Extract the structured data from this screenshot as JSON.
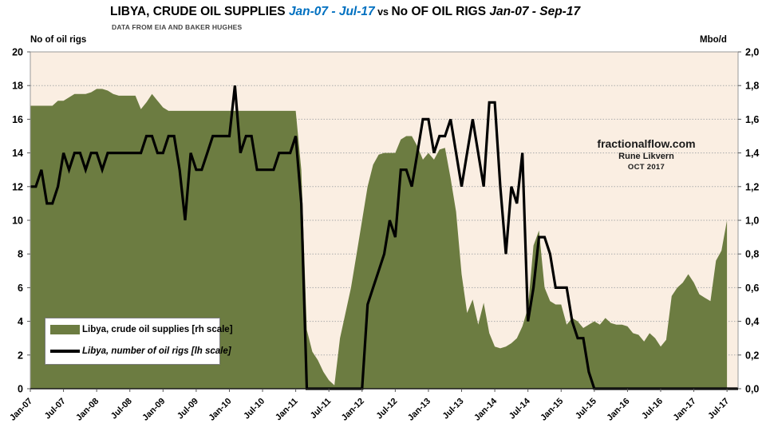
{
  "header": {
    "title_part1": "LIBYA, CRUDE OIL SUPPLIES ",
    "title_range1": "Jan-07 - Jul-17",
    "title_vs": " vs ",
    "title_part2": "No OF OIL RIGS ",
    "title_range2": "Jan-07 - Sep-17",
    "subtitle": "DATA FROM EIA AND BAKER HUGHES"
  },
  "axes": {
    "left_label": "No of  oil rigs",
    "right_label": "Mbo/d",
    "left_ticks": [
      "0",
      "2",
      "4",
      "6",
      "8",
      "10",
      "12",
      "14",
      "16",
      "18",
      "20"
    ],
    "right_ticks": [
      "0,0",
      "0,2",
      "0,4",
      "0,6",
      "0,8",
      "1,0",
      "1,2",
      "1,4",
      "1,6",
      "1,8",
      "2,0"
    ],
    "x_ticks": [
      "Jan-07",
      "Jul-07",
      "Jan-08",
      "Jul-08",
      "Jan-09",
      "Jul-09",
      "Jan-10",
      "Jul-10",
      "Jan-11",
      "Jul-11",
      "Jan-12",
      "Jul-12",
      "Jan-13",
      "Jul-13",
      "Jan-14",
      "Jul-14",
      "Jan-15",
      "Jul-15",
      "Jan-16",
      "Jul-16",
      "Jan-17",
      "Jul-17"
    ]
  },
  "legend": {
    "supplies_label": "Libya, crude oil supplies [rh scale]",
    "rigs_label": "Libya, number of oil rigs [lh scale]"
  },
  "annotation": {
    "site": "fractionalflow.com",
    "author": "Rune Likvern",
    "date": "OCT 2017"
  },
  "colors": {
    "area_green": "#6c7c41",
    "plot_bg": "#faeee2",
    "line_black": "#000000",
    "grid": "#ababab",
    "spine": "#9a9a9a",
    "title_blue": "#0070c0"
  },
  "chart_data": {
    "type": "area+line",
    "title": "LIBYA, CRUDE OIL SUPPLIES Jan-07 - Jul-17 vs No OF OIL RIGS Jan-07 - Sep-17",
    "subtitle": "DATA FROM EIA AND BAKER HUGHES",
    "x_tick_labels": [
      "Jan-07",
      "Jul-07",
      "Jan-08",
      "Jul-08",
      "Jan-09",
      "Jul-09",
      "Jan-10",
      "Jul-10",
      "Jan-11",
      "Jul-11",
      "Jan-12",
      "Jul-12",
      "Jan-13",
      "Jul-13",
      "Jan-14",
      "Jul-14",
      "Jan-15",
      "Jul-15",
      "Jan-16",
      "Jul-16",
      "Jan-17",
      "Jul-17"
    ],
    "months_total": 128,
    "left_axis": {
      "label": "No of  oil rigs",
      "min": 0,
      "max": 20,
      "step": 2
    },
    "right_axis": {
      "label": "Mbo/d",
      "min": 0.0,
      "max": 2.0,
      "step": 0.2
    },
    "legend_position": "bottom-left-inside",
    "grid": "horizontal-dotted",
    "series": [
      {
        "name": "Libya, crude oil supplies [rh scale]",
        "type": "area",
        "axis": "right",
        "unit": "Mbo/d",
        "start": "Jan-07",
        "end": "Jul-17",
        "monthly_values": [
          1.68,
          1.68,
          1.68,
          1.68,
          1.68,
          1.71,
          1.71,
          1.73,
          1.75,
          1.75,
          1.75,
          1.76,
          1.78,
          1.78,
          1.77,
          1.75,
          1.74,
          1.74,
          1.74,
          1.74,
          1.66,
          1.7,
          1.75,
          1.71,
          1.67,
          1.65,
          1.65,
          1.65,
          1.65,
          1.65,
          1.65,
          1.65,
          1.65,
          1.65,
          1.65,
          1.65,
          1.65,
          1.65,
          1.65,
          1.65,
          1.65,
          1.65,
          1.65,
          1.65,
          1.65,
          1.65,
          1.65,
          1.65,
          1.65,
          1.3,
          0.35,
          0.22,
          0.17,
          0.1,
          0.05,
          0.02,
          0.3,
          0.45,
          0.6,
          0.8,
          1.0,
          1.2,
          1.33,
          1.39,
          1.4,
          1.4,
          1.4,
          1.48,
          1.5,
          1.5,
          1.44,
          1.36,
          1.4,
          1.36,
          1.42,
          1.43,
          1.25,
          1.05,
          0.68,
          0.45,
          0.53,
          0.38,
          0.51,
          0.33,
          0.25,
          0.24,
          0.25,
          0.27,
          0.3,
          0.37,
          0.48,
          0.85,
          0.94,
          0.6,
          0.52,
          0.5,
          0.5,
          0.38,
          0.42,
          0.4,
          0.36,
          0.38,
          0.4,
          0.38,
          0.42,
          0.39,
          0.38,
          0.38,
          0.37,
          0.33,
          0.32,
          0.28,
          0.33,
          0.3,
          0.25,
          0.29,
          0.55,
          0.6,
          0.63,
          0.68,
          0.63,
          0.56,
          0.54,
          0.52,
          0.76,
          0.82,
          1.0
        ]
      },
      {
        "name": "Libya, number of oil rigs [lh scale]",
        "type": "line",
        "axis": "left",
        "unit": "rigs",
        "start": "Jan-07",
        "end": "Sep-17",
        "monthly_values": [
          12,
          12,
          13,
          11,
          11,
          12,
          14,
          13,
          14,
          14,
          13,
          14,
          14,
          13,
          14,
          14,
          14,
          14,
          14,
          14,
          14,
          15,
          15,
          14,
          14,
          15,
          15,
          13,
          10,
          14,
          13,
          13,
          14,
          15,
          15,
          15,
          15,
          18,
          14,
          15,
          15,
          13,
          13,
          13,
          13,
          14,
          14,
          14,
          15,
          11,
          0,
          0,
          0,
          0,
          0,
          0,
          0,
          0,
          0,
          0,
          0,
          5,
          6,
          7,
          8,
          10,
          9,
          13,
          13,
          12,
          14,
          16,
          16,
          14,
          15,
          15,
          16,
          14,
          12,
          14,
          16,
          14,
          12,
          17,
          17,
          12,
          8,
          12,
          11,
          14,
          4,
          6,
          9,
          9,
          8,
          6,
          6,
          6,
          4,
          3,
          3,
          1,
          0,
          0,
          0,
          0,
          0,
          0,
          0,
          0,
          0,
          0,
          0,
          0,
          0,
          0,
          0,
          0,
          0,
          0,
          0,
          0,
          0,
          0,
          0,
          0,
          0,
          0,
          0
        ]
      }
    ]
  }
}
